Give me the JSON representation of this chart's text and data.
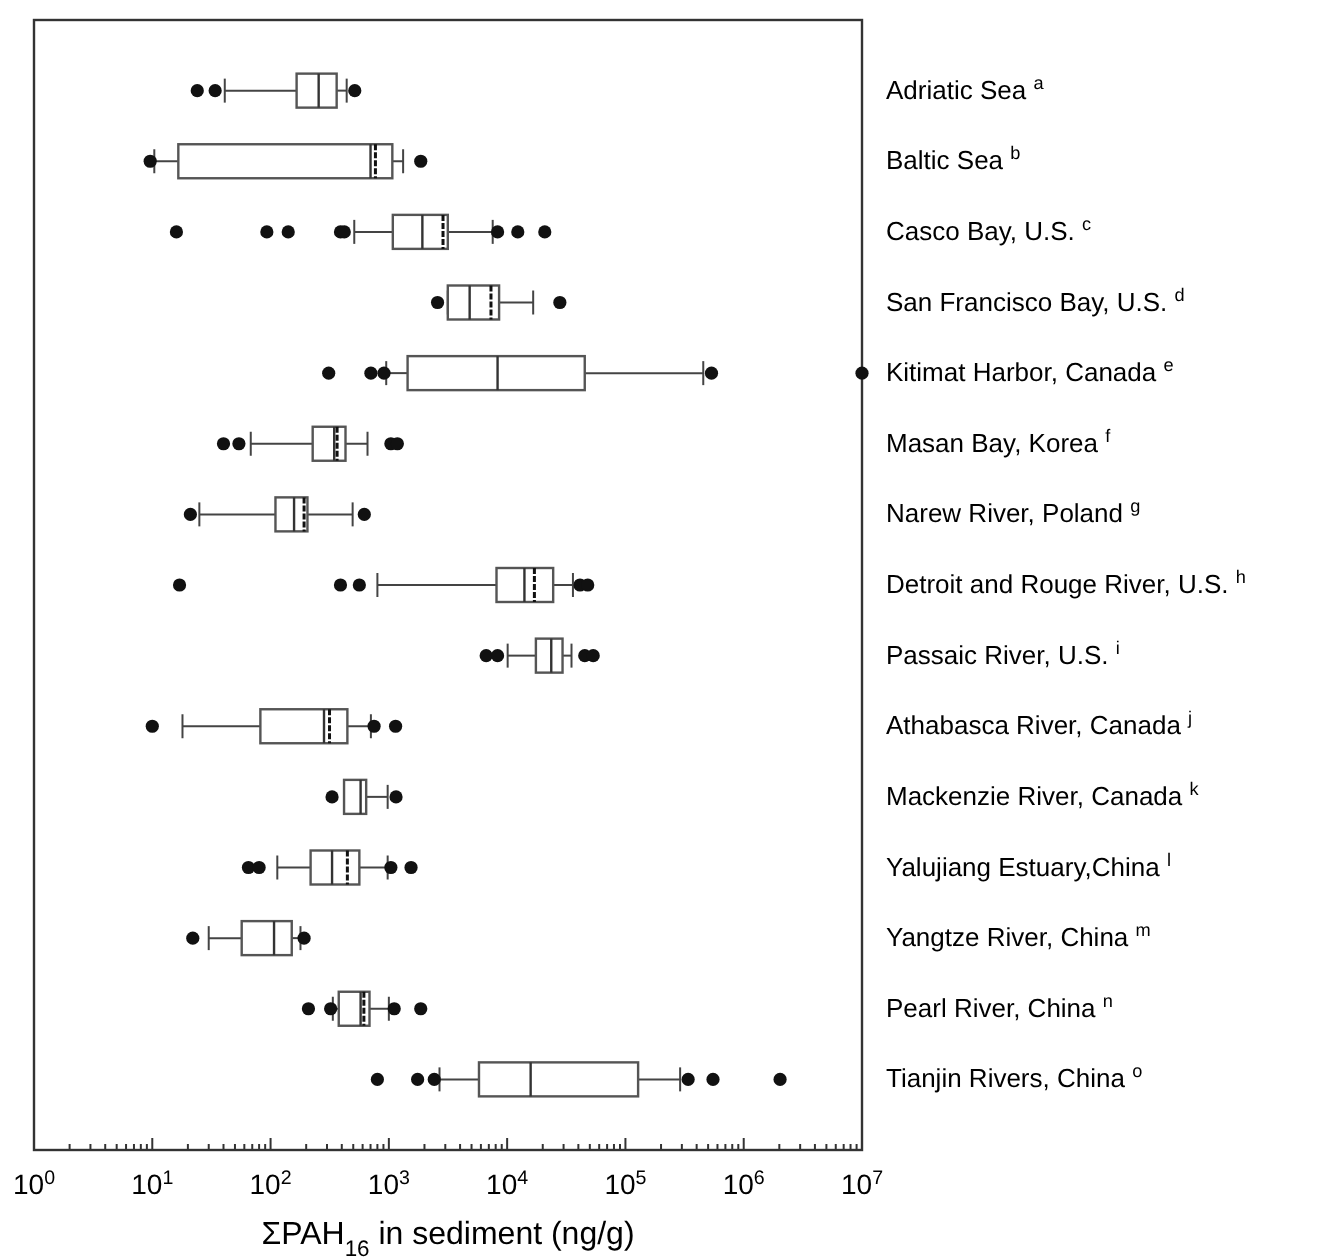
{
  "chart_data": {
    "type": "box",
    "orientation": "horizontal",
    "log": "x",
    "grid": false,
    "xlabel": "ΣPAH$_{16}$ in sediment (ng/g)",
    "categories": [
      "Adriatic Sea $^{a}$",
      "Baltic Sea $^{b}$",
      "Casco Bay, U.S. $^{c}$",
      "San Francisco Bay, U.S. $^{d}$",
      "Kitimat Harbor, Canada $^{e}$",
      "Masan Bay, Korea $^{f}$",
      "Narew River, Poland $^{g}$",
      "Detroit and Rouge River, U.S. $^{h}$",
      "Passaic River, U.S. $^{i}$",
      "Athabasca River, Canada $^{j}$",
      "Mackenzie River, Canada $^{k}$",
      "Yalujiang Estuary,China $^{l}$",
      "Yangtze River, China $^{m}$",
      "Pearl River, China $^{n}$",
      "Tianjin Rivers, China $^{o}$"
    ],
    "boxes": [
      {
        "low": 41,
        "q1": 166,
        "median": 255,
        "q3": 362,
        "high": 440,
        "outliers": [
          24,
          34,
          515
        ]
      },
      {
        "low": 10.4,
        "q1": 16.6,
        "median": 700,
        "mean": 770,
        "q3": 1070,
        "high": 1320,
        "outliers": [
          9.6,
          1860
        ]
      },
      {
        "low": 510,
        "q1": 1080,
        "median": 1920,
        "mean": 2870,
        "q3": 3150,
        "high": 7550,
        "outliers": [
          16,
          93,
          141,
          390,
          420,
          8300,
          12300,
          20800
        ]
      },
      {
        "low": 3150,
        "q1": 3150,
        "median": 4820,
        "mean": 7300,
        "q3": 8550,
        "high": 16600,
        "outliers": [
          2580,
          27900
        ]
      },
      {
        "low": 950,
        "q1": 1440,
        "median": 8300,
        "q3": 45300,
        "high": 455000,
        "outliers": [
          310,
          705,
          910,
          534000,
          10000000
        ]
      },
      {
        "low": 68,
        "q1": 227,
        "median": 345,
        "mean": 365,
        "q3": 430,
        "high": 660,
        "outliers": [
          40,
          54,
          1040,
          1180
        ]
      },
      {
        "low": 25,
        "q1": 110,
        "median": 158,
        "mean": 192,
        "q3": 205,
        "high": 494,
        "outliers": [
          21,
          620
        ]
      },
      {
        "low": 800,
        "q1": 8130,
        "median": 14000,
        "mean": 17000,
        "q3": 24500,
        "high": 36000,
        "outliers": [
          17,
          390,
          563,
          41300,
          48000
        ]
      },
      {
        "low": 10100,
        "q1": 17500,
        "median": 23600,
        "q3": 29400,
        "high": 35000,
        "outliers": [
          6650,
          8300,
          45300,
          53400
        ]
      },
      {
        "low": 18,
        "q1": 82,
        "median": 283,
        "mean": 315,
        "q3": 446,
        "high": 705,
        "outliers": [
          10,
          750,
          1140
        ]
      },
      {
        "low": 418,
        "q1": 418,
        "median": 577,
        "q3": 643,
        "high": 977,
        "outliers": [
          331,
          1150
        ]
      },
      {
        "low": 114,
        "q1": 218,
        "median": 331,
        "mean": 446,
        "q3": 563,
        "high": 977,
        "outliers": [
          65,
          80,
          1040,
          1540
        ]
      },
      {
        "low": 30,
        "q1": 57,
        "median": 107,
        "q3": 151,
        "high": 179,
        "outliers": [
          22,
          192
        ]
      },
      {
        "low": 336,
        "q1": 377,
        "median": 577,
        "mean": 615,
        "q3": 686,
        "high": 1000,
        "outliers": [
          209,
          322,
          1110,
          1860
        ]
      },
      {
        "low": 2680,
        "q1": 5780,
        "median": 15800,
        "q3": 128000,
        "high": 290000,
        "outliers": [
          800,
          1750,
          2420,
          339000,
          550000,
          2030000
        ]
      }
    ],
    "xlim": [
      1,
      10000000
    ],
    "xticks": [
      {
        "value": 1,
        "label": "10$^{0}$"
      },
      {
        "value": 2,
        "label": null
      },
      {
        "value": 3,
        "label": null
      },
      {
        "value": 4,
        "label": null
      },
      {
        "value": 5,
        "label": null
      },
      {
        "value": 6,
        "label": null
      },
      {
        "value": 7,
        "label": null
      },
      {
        "value": 8,
        "label": null
      },
      {
        "value": 9,
        "label": null
      },
      {
        "value": 10,
        "label": "10$^{1}$"
      },
      {
        "value": 20,
        "label": null
      },
      {
        "value": 30,
        "label": null
      },
      {
        "value": 40,
        "label": null
      },
      {
        "value": 50,
        "label": null
      },
      {
        "value": 60,
        "label": null
      },
      {
        "value": 70,
        "label": null
      },
      {
        "value": 80,
        "label": null
      },
      {
        "value": 90,
        "label": null
      },
      {
        "value": 100,
        "label": "10$^{2}$"
      },
      {
        "value": 200,
        "label": null
      },
      {
        "value": 300,
        "label": null
      },
      {
        "value": 400,
        "label": null
      },
      {
        "value": 500,
        "label": null
      },
      {
        "value": 600,
        "label": null
      },
      {
        "value": 700,
        "label": null
      },
      {
        "value": 800,
        "label": null
      },
      {
        "value": 900,
        "label": null
      },
      {
        "value": 1000,
        "label": "10$^{3}$"
      },
      {
        "value": 2000,
        "label": null
      },
      {
        "value": 3000,
        "label": null
      },
      {
        "value": 4000,
        "label": null
      },
      {
        "value": 5000,
        "label": null
      },
      {
        "value": 6000,
        "label": null
      },
      {
        "value": 7000,
        "label": null
      },
      {
        "value": 8000,
        "label": null
      },
      {
        "value": 9000,
        "label": null
      },
      {
        "value": 10000,
        "label": "10$^{4}$"
      },
      {
        "value": 20000,
        "label": null
      },
      {
        "value": 30000,
        "label": null
      },
      {
        "value": 40000,
        "label": null
      },
      {
        "value": 50000,
        "label": null
      },
      {
        "value": 60000,
        "label": null
      },
      {
        "value": 70000,
        "label": null
      },
      {
        "value": 80000,
        "label": null
      },
      {
        "value": 90000,
        "label": null
      },
      {
        "value": 100000,
        "label": "10$^{5}$"
      },
      {
        "value": 200000,
        "label": null
      },
      {
        "value": 300000,
        "label": null
      },
      {
        "value": 400000,
        "label": null
      },
      {
        "value": 500000,
        "label": null
      },
      {
        "value": 600000,
        "label": null
      },
      {
        "value": 700000,
        "label": null
      },
      {
        "value": 800000,
        "label": null
      },
      {
        "value": 900000,
        "label": null
      },
      {
        "value": 1000000,
        "label": "10$^{6}$"
      },
      {
        "value": 2000000,
        "label": null
      },
      {
        "value": 3000000,
        "label": null
      },
      {
        "value": 4000000,
        "label": null
      },
      {
        "value": 5000000,
        "label": null
      },
      {
        "value": 6000000,
        "label": null
      },
      {
        "value": 7000000,
        "label": null
      },
      {
        "value": 8000000,
        "label": null
      },
      {
        "value": 9000000,
        "label": null
      },
      {
        "value": 10000000,
        "label": "10$^{7}$"
      }
    ]
  }
}
